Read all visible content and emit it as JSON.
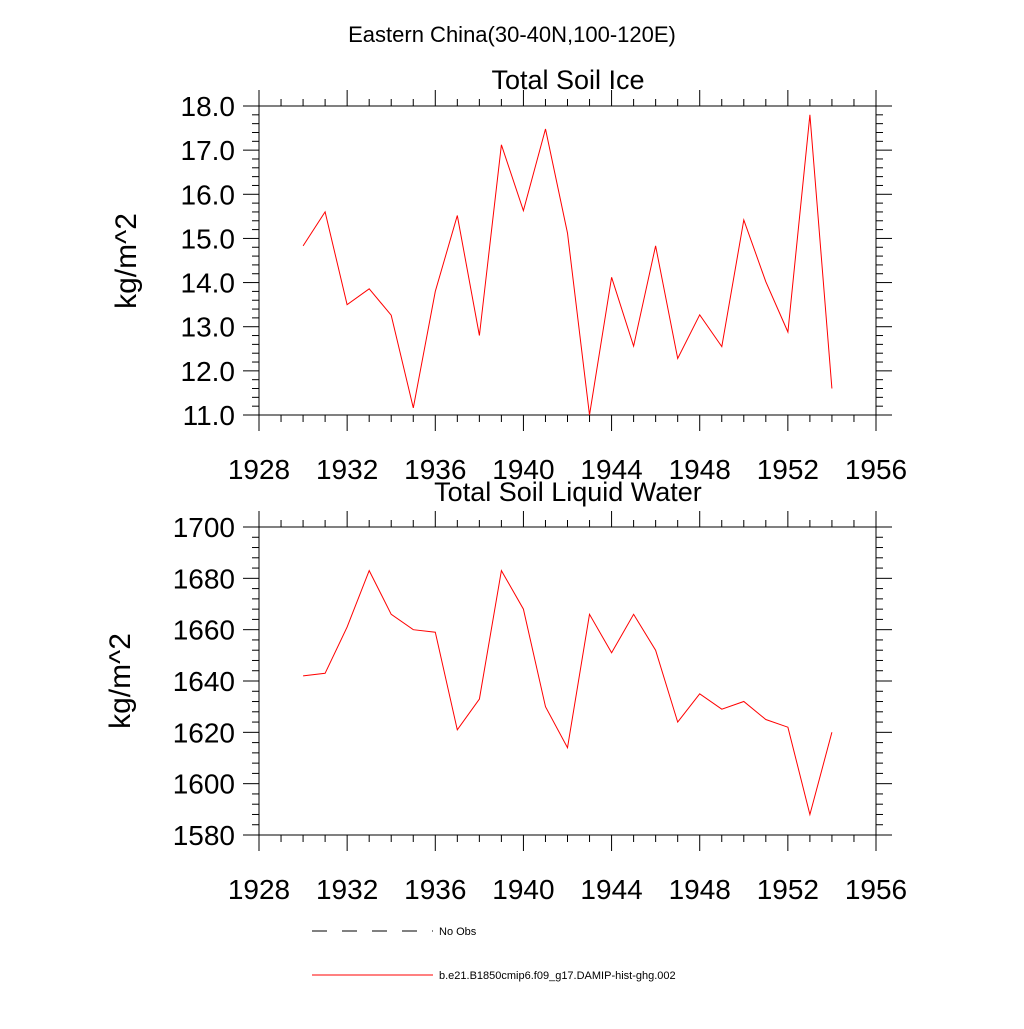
{
  "figure": {
    "title": "Eastern China(30-40N,100-120E)"
  },
  "chart_data": [
    {
      "type": "line",
      "title": "Total Soil Ice",
      "xlabel": "",
      "ylabel": "kg/m^2",
      "xlim": [
        1928,
        1956
      ],
      "ylim": [
        11.0,
        18.0
      ],
      "xticks": [
        1928,
        1932,
        1936,
        1940,
        1944,
        1948,
        1952,
        1956
      ],
      "yticks": [
        11.0,
        12.0,
        13.0,
        14.0,
        15.0,
        16.0,
        17.0,
        18.0
      ],
      "xtick_labels": [
        "1928",
        "1932",
        "1936",
        "1940",
        "1944",
        "1948",
        "1952",
        "1956"
      ],
      "ytick_labels": [
        "11.0",
        "12.0",
        "13.0",
        "14.0",
        "15.0",
        "16.0",
        "17.0",
        "18.0"
      ],
      "grid": false,
      "series": [
        {
          "name": "b.e21.B1850cmip6.f09_g17.DAMIP-hist-ghg.002",
          "color": "#ff0000",
          "x": [
            1930,
            1931,
            1932,
            1933,
            1934,
            1935,
            1936,
            1937,
            1938,
            1939,
            1940,
            1941,
            1942,
            1943,
            1944,
            1945,
            1946,
            1947,
            1948,
            1949,
            1950,
            1951,
            1952,
            1953,
            1954
          ],
          "values": [
            14.83,
            15.6,
            13.5,
            13.86,
            13.26,
            11.16,
            13.8,
            15.52,
            12.8,
            17.12,
            15.63,
            17.48,
            15.12,
            11.0,
            14.12,
            12.56,
            14.83,
            12.28,
            13.27,
            12.55,
            15.42,
            14.02,
            12.88,
            17.8,
            11.6
          ]
        }
      ]
    },
    {
      "type": "line",
      "title": "Total Soil Liquid Water",
      "xlabel": "",
      "ylabel": "kg/m^2",
      "xlim": [
        1928,
        1956
      ],
      "ylim": [
        1580,
        1700
      ],
      "xticks": [
        1928,
        1932,
        1936,
        1940,
        1944,
        1948,
        1952,
        1956
      ],
      "yticks": [
        1580,
        1600,
        1620,
        1640,
        1660,
        1680,
        1700
      ],
      "xtick_labels": [
        "1928",
        "1932",
        "1936",
        "1940",
        "1944",
        "1948",
        "1952",
        "1956"
      ],
      "ytick_labels": [
        "1580",
        "1600",
        "1620",
        "1640",
        "1660",
        "1680",
        "1700"
      ],
      "grid": false,
      "series": [
        {
          "name": "b.e21.B1850cmip6.f09_g17.DAMIP-hist-ghg.002",
          "color": "#ff0000",
          "x": [
            1930,
            1931,
            1932,
            1933,
            1934,
            1935,
            1936,
            1937,
            1938,
            1939,
            1940,
            1941,
            1942,
            1943,
            1944,
            1945,
            1946,
            1947,
            1948,
            1949,
            1950,
            1951,
            1952,
            1953,
            1954
          ],
          "values": [
            1642,
            1643,
            1661,
            1683,
            1666,
            1660,
            1659,
            1621,
            1633,
            1683,
            1668,
            1630,
            1614,
            1666,
            1651,
            1666,
            1652,
            1624,
            1635,
            1629,
            1632,
            1625,
            1622,
            1588,
            1620
          ]
        }
      ]
    }
  ],
  "legend": {
    "placement": "bottom",
    "items": [
      {
        "label": "No Obs",
        "style": "dashed",
        "color": "#000000"
      },
      {
        "label": "b.e21.B1850cmip6.f09_g17.DAMIP-hist-ghg.002",
        "style": "solid",
        "color": "#ff0000"
      }
    ]
  }
}
